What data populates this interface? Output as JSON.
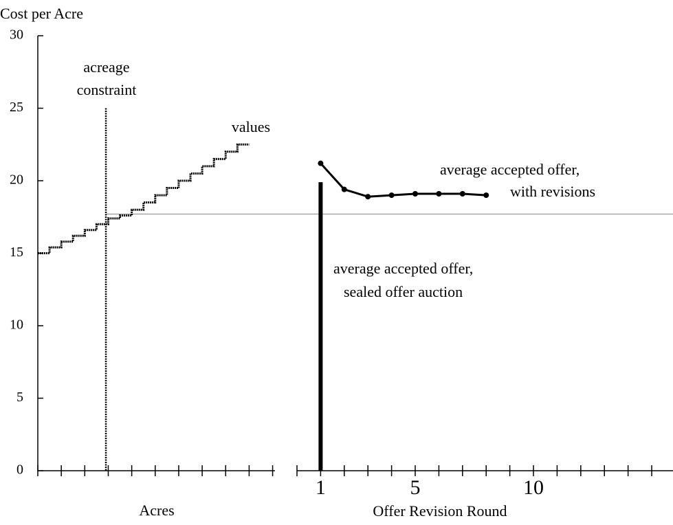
{
  "chart_data": {
    "type": "line",
    "y_label": "Cost per Acre",
    "ylim": [
      0,
      30
    ],
    "yticks": [
      0,
      5,
      10,
      15,
      20,
      25,
      30
    ],
    "threshold": 17.7,
    "acres": {
      "x_label": "Acres",
      "xlim": [
        0,
        10.1
      ],
      "minor_xticks": [
        0,
        1,
        2,
        3,
        4,
        5,
        6,
        7,
        8,
        9,
        10
      ],
      "constraint_x": 2.9,
      "constraint_top": 25,
      "constraint_label": [
        "acreage",
        "constraint"
      ],
      "series": [
        {
          "name": "values",
          "x": [
            0,
            0.5,
            1,
            1.5,
            2,
            2.5,
            3,
            3.5,
            4,
            4.5,
            5,
            5.5,
            6,
            6.5,
            7,
            7.5,
            8,
            8.5,
            9
          ],
          "values": [
            15.0,
            15.4,
            15.8,
            16.2,
            16.6,
            17.0,
            17.4,
            17.6,
            18.0,
            18.5,
            19.0,
            19.5,
            20.0,
            20.5,
            21.0,
            21.5,
            22.0,
            22.5,
            22.5
          ]
        }
      ]
    },
    "rounds": {
      "x_label": "Offer Revision Round",
      "xlim": [
        0,
        15.9
      ],
      "xticks": [
        1,
        5,
        10
      ],
      "minor_xticks": [
        0,
        1,
        2,
        3,
        4,
        5,
        6,
        7,
        8,
        9,
        10,
        11,
        12,
        13,
        14,
        15
      ],
      "series": [
        {
          "label": [
            "average accepted offer,",
            "with revisions"
          ],
          "x": [
            1,
            2,
            3,
            4,
            5,
            6,
            7,
            8
          ],
          "values": [
            21.2,
            19.4,
            18.9,
            19.0,
            19.1,
            19.1,
            19.1,
            19.0
          ]
        }
      ],
      "sealed": {
        "label": [
          "average accepted offer,",
          "sealed offer auction"
        ],
        "x": 1,
        "value": 19.9
      }
    }
  }
}
